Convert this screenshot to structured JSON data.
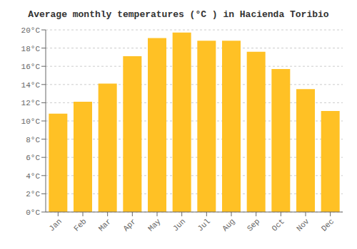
{
  "chart_data": {
    "type": "bar",
    "title": "Average monthly temperatures (°C ) in Hacienda Toribio",
    "categories": [
      "Jan",
      "Feb",
      "Mar",
      "Apr",
      "May",
      "Jun",
      "Jul",
      "Aug",
      "Sep",
      "Oct",
      "Nov",
      "Dec"
    ],
    "values": [
      10.8,
      12.1,
      14.1,
      17.1,
      19.1,
      19.7,
      18.8,
      18.8,
      17.6,
      15.7,
      13.5,
      11.1
    ],
    "color": "#FFC125",
    "ylim": [
      0,
      20
    ],
    "yticks": [
      {
        "value": 0,
        "label": "0°C"
      },
      {
        "value": 2,
        "label": "2°C"
      },
      {
        "value": 4,
        "label": "4°C"
      },
      {
        "value": 6,
        "label": "6°C"
      },
      {
        "value": 8,
        "label": "8°C"
      },
      {
        "value": 10,
        "label": "10°C"
      },
      {
        "value": 12,
        "label": "12°C"
      },
      {
        "value": 14,
        "label": "14°C"
      },
      {
        "value": 16,
        "label": "16°C"
      },
      {
        "value": 18,
        "label": "18°C"
      },
      {
        "value": 20,
        "label": "20°C"
      }
    ],
    "grid": true
  }
}
